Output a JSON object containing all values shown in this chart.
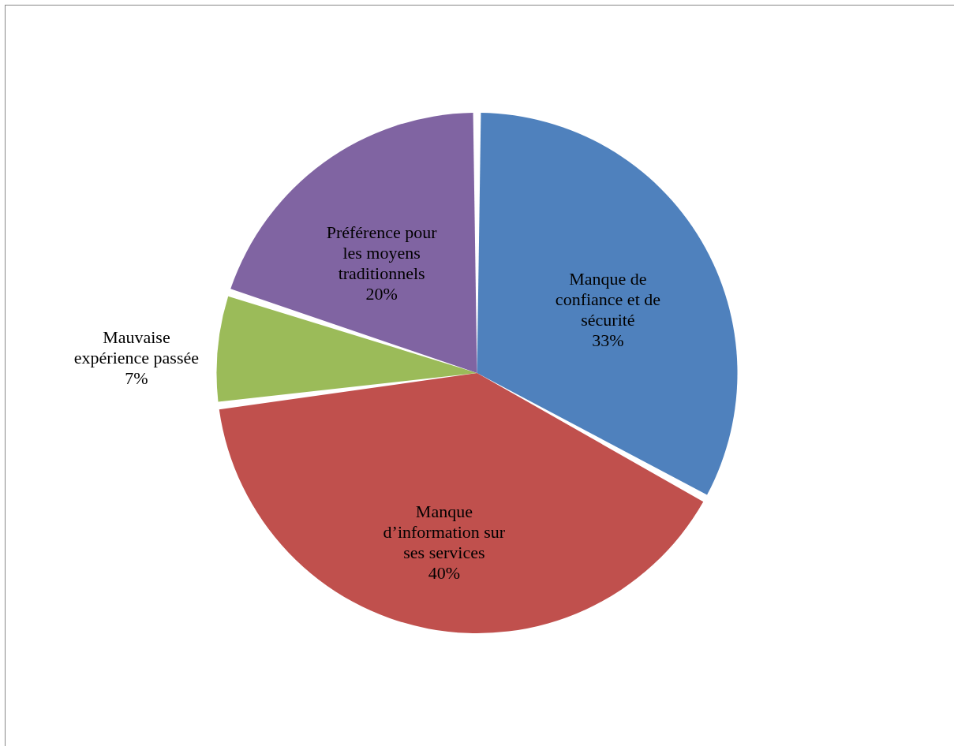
{
  "chart_data": {
    "type": "pie",
    "categories": [
      "Manque de confiance et de sécurité",
      "Manque d’information sur ses services",
      "Mauvaise expérience passée",
      "Préférence pour les moyens traditionnels"
    ],
    "values": [
      33,
      40,
      7,
      20
    ],
    "colors": [
      "#4f81bd",
      "#c0504d",
      "#9bbb59",
      "#8064a2"
    ],
    "value_labels": [
      "33%",
      "40%",
      "7%",
      "20%"
    ]
  }
}
